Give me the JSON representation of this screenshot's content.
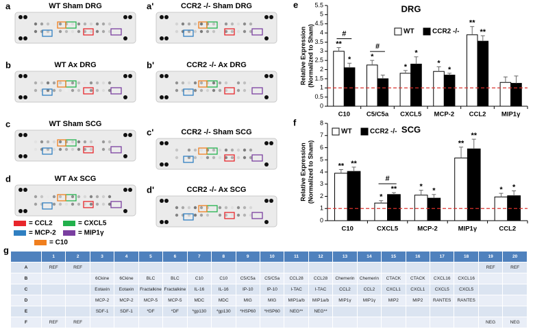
{
  "blots": [
    {
      "letter": "a",
      "title": "WT Sham DRG"
    },
    {
      "letter": "b",
      "title": "WT Ax DRG"
    },
    {
      "letter": "c",
      "title": "WT Sham SCG"
    },
    {
      "letter": "d",
      "title": "WT Ax SCG"
    },
    {
      "letter": "a'",
      "title": "CCR2 -/- Sham DRG"
    },
    {
      "letter": "b'",
      "title": "CCR2 -/- Ax DRG"
    },
    {
      "letter": "c'",
      "title": "CCR2 -/- Sham SCG"
    },
    {
      "letter": "d'",
      "title": "CCR2 -/- Ax SCG"
    }
  ],
  "blot_legend": [
    {
      "label": "= CCL2",
      "color": "#e8262b"
    },
    {
      "label": "= CXCL5",
      "color": "#22b14c"
    },
    {
      "label": "= MCP-2",
      "color": "#2f7fc1"
    },
    {
      "label": "= MIP1γ",
      "color": "#7a3fa0"
    },
    {
      "label": "= C10",
      "color": "#f07f1e"
    }
  ],
  "chart_data": [
    {
      "type": "bar",
      "label": "e",
      "title": "DRG",
      "ylabel": [
        "Relative Expression",
        "(Normalized to Sham)"
      ],
      "categories": [
        "C10",
        "C5/C5a",
        "CXCL5",
        "MCP-2",
        "CCL2",
        "MIP1γ"
      ],
      "series": [
        {
          "name": "WT",
          "color": "#ffffff",
          "values": [
            3.0,
            2.25,
            1.8,
            1.9,
            3.9,
            1.3
          ],
          "errors": [
            0.2,
            0.25,
            0.15,
            0.25,
            0.45,
            0.3
          ],
          "significance": [
            "**",
            "*",
            "*",
            "*",
            "**",
            null
          ]
        },
        {
          "name": "CCR2 -/-",
          "color": "#000000",
          "values": [
            2.1,
            1.5,
            2.3,
            1.7,
            3.55,
            1.25
          ],
          "errors": [
            0.25,
            0.2,
            0.4,
            0.1,
            0.3,
            0.4
          ],
          "significance": [
            "*",
            null,
            "*",
            "*",
            "**",
            null
          ]
        }
      ],
      "comparisons": [
        {
          "category": "C10",
          "label": "#"
        },
        {
          "category": "C5/C5a",
          "label": "#"
        }
      ],
      "reference_line": {
        "value": 1,
        "color": "#d9302c"
      },
      "ylim": [
        0,
        5.5
      ],
      "yticks": [
        0,
        0.5,
        1,
        1.5,
        2,
        2.5,
        3,
        3.5,
        4,
        4.5,
        5,
        5.5
      ]
    },
    {
      "type": "bar",
      "label": "f",
      "title": "SCG",
      "ylabel": [
        "Relative Expression",
        "(Normalized to Sham)"
      ],
      "categories": [
        "C10",
        "CXCL5",
        "MCP-2",
        "MIP1γ",
        "CCL2"
      ],
      "series": [
        {
          "name": "WT",
          "color": "#ffffff",
          "values": [
            3.9,
            1.45,
            2.1,
            5.15,
            1.95
          ],
          "errors": [
            0.3,
            0.2,
            0.4,
            0.9,
            0.3
          ],
          "significance": [
            "**",
            "*",
            "*",
            "**",
            "*"
          ]
        },
        {
          "name": "CCR2 -/-",
          "color": "#000000",
          "values": [
            4.05,
            2.15,
            1.85,
            5.9,
            2.05
          ],
          "errors": [
            0.35,
            0.15,
            0.3,
            0.8,
            0.4
          ],
          "significance": [
            "**",
            "**",
            "*",
            "**",
            "*"
          ]
        }
      ],
      "comparisons": [
        {
          "category": "CXCL5",
          "label": "#"
        }
      ],
      "reference_line": {
        "value": 1,
        "color": "#d9302c"
      },
      "ylim": [
        0,
        8
      ],
      "yticks": [
        0,
        1,
        2,
        3,
        4,
        5,
        6,
        7,
        8
      ]
    }
  ],
  "table": {
    "label": "g",
    "header": [
      "1",
      "2",
      "3",
      "4",
      "5",
      "6",
      "7",
      "8",
      "9",
      "10",
      "11",
      "12",
      "13",
      "14",
      "15",
      "16",
      "17",
      "18",
      "19",
      "20"
    ],
    "rows": [
      {
        "label": "A",
        "cells": [
          "REF",
          "REF",
          null,
          null,
          null,
          null,
          null,
          null,
          null,
          null,
          null,
          null,
          null,
          null,
          null,
          null,
          null,
          null,
          "REF",
          "REF"
        ]
      },
      {
        "label": "B",
        "cells": [
          null,
          null,
          "6Ckine",
          "6Ckine",
          "BLC",
          "BLC",
          "C10",
          "C10",
          "C5/C5a",
          "C5/C5a",
          "CCL28",
          "CCL28",
          "Chemerin",
          "Chemerin",
          "CTACK",
          "CTACK",
          "CXCL16",
          "CXCL16",
          null,
          null
        ]
      },
      {
        "label": "C",
        "cells": [
          null,
          null,
          "Eotaxin",
          "Eotaxin",
          "Fractalkine",
          "Fractalkine",
          "IL-16",
          "IL-16",
          "IP-10",
          "IP-10",
          "I-TAC",
          "I-TAC",
          "CCL2",
          "CCL2",
          "CXCL1",
          "CXCL1",
          "CXCL5",
          "CXCL5",
          null,
          null
        ]
      },
      {
        "label": "D",
        "cells": [
          null,
          null,
          "MCP-2",
          "MCP-2",
          "MCP-5",
          "MCP-5",
          "MDC",
          "MDC",
          "MIG",
          "MIG",
          "MIP1a/b",
          "MIP1a/b",
          "MIP1γ",
          "MIP1γ",
          "MIP2",
          "MIP2",
          "RANTES",
          "RANTES",
          null,
          null
        ]
      },
      {
        "label": "E",
        "cells": [
          null,
          null,
          "SDF-1",
          "SDF-1",
          "*DF",
          "*DF",
          "*gp130",
          "*gp130",
          "*HSP60",
          "*HSP60",
          "NEG**",
          "NEG**",
          null,
          null,
          null,
          null,
          null,
          null,
          null,
          null
        ]
      },
      {
        "label": "F",
        "cells": [
          "REF",
          "REF",
          null,
          null,
          null,
          null,
          null,
          null,
          null,
          null,
          null,
          null,
          null,
          null,
          null,
          null,
          null,
          null,
          "NEG",
          "NEG"
        ]
      }
    ]
  }
}
